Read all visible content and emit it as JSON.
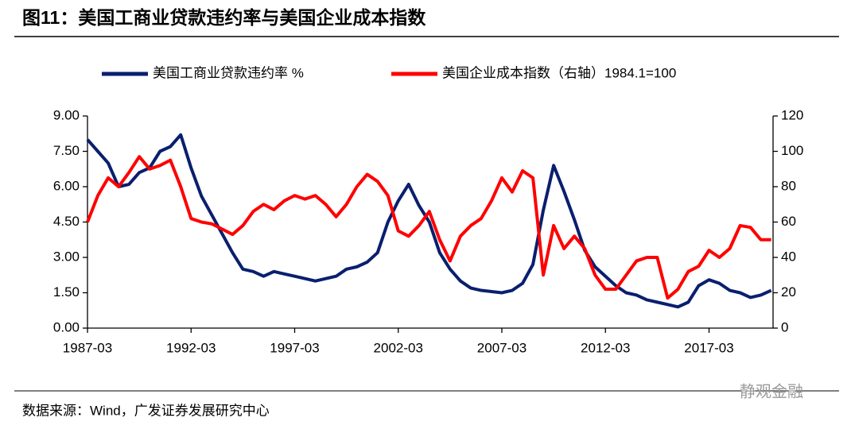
{
  "chart_data": {
    "type": "line",
    "title": "图11：美国工商业贷款违约率与美国企业成本指数",
    "source": "数据来源：Wind，广发证券发展研究中心",
    "watermark": "静观金融",
    "x": [
      "1987-03",
      "1987-09",
      "1988-03",
      "1988-09",
      "1989-03",
      "1989-09",
      "1990-03",
      "1990-09",
      "1991-03",
      "1991-09",
      "1992-03",
      "1992-09",
      "1993-03",
      "1993-09",
      "1994-03",
      "1994-09",
      "1995-03",
      "1995-09",
      "1996-03",
      "1996-09",
      "1997-03",
      "1997-09",
      "1998-03",
      "1998-09",
      "1999-03",
      "1999-09",
      "2000-03",
      "2000-09",
      "2001-03",
      "2001-09",
      "2002-03",
      "2002-09",
      "2003-03",
      "2003-09",
      "2004-03",
      "2004-09",
      "2005-03",
      "2005-09",
      "2006-03",
      "2006-09",
      "2007-03",
      "2007-09",
      "2008-03",
      "2008-09",
      "2009-03",
      "2009-09",
      "2010-03",
      "2010-09",
      "2011-03",
      "2011-09",
      "2012-03",
      "2012-09",
      "2013-03",
      "2013-09",
      "2014-03",
      "2014-09",
      "2015-03",
      "2015-09",
      "2016-03",
      "2016-09",
      "2017-03",
      "2017-09",
      "2018-03",
      "2018-09",
      "2019-03",
      "2019-09",
      "2020-03"
    ],
    "xticks": [
      "1987-03",
      "1992-03",
      "1997-03",
      "2002-03",
      "2007-03",
      "2012-03",
      "2017-03"
    ],
    "ylim": [
      0,
      9
    ],
    "yticks": [
      {
        "value": 0,
        "label": "0.00"
      },
      {
        "value": 1.5,
        "label": "1.50"
      },
      {
        "value": 3,
        "label": "3.00"
      },
      {
        "value": 4.5,
        "label": "4.50"
      },
      {
        "value": 6,
        "label": "6.00"
      },
      {
        "value": 7.5,
        "label": "7.50"
      },
      {
        "value": 9,
        "label": "9.00"
      }
    ],
    "y2lim": [
      0,
      120
    ],
    "y2ticks": [
      0,
      20,
      40,
      60,
      80,
      100,
      120
    ],
    "grid": false,
    "legend": "top",
    "series": [
      {
        "name": "美国工商业贷款违约率 %",
        "color": "#0a1f6e",
        "values": [
          8.0,
          7.5,
          7.0,
          6.0,
          6.1,
          6.6,
          6.8,
          7.5,
          7.7,
          8.2,
          6.8,
          5.6,
          4.8,
          4.0,
          3.2,
          2.5,
          2.4,
          2.2,
          2.4,
          2.3,
          2.2,
          2.1,
          2.0,
          2.1,
          2.2,
          2.5,
          2.6,
          2.8,
          3.2,
          4.5,
          5.4,
          6.1,
          5.2,
          4.5,
          3.2,
          2.5,
          2.0,
          1.7,
          1.6,
          1.55,
          1.5,
          1.6,
          1.9,
          2.7,
          5.0,
          6.9,
          5.8,
          4.6,
          3.3,
          2.6,
          2.2,
          1.8,
          1.5,
          1.4,
          1.2,
          1.1,
          1.0,
          0.9,
          1.1,
          1.8,
          2.05,
          1.9,
          1.6,
          1.5,
          1.3,
          1.4,
          1.6
        ]
      },
      {
        "name": "美国企业成本指数（右轴）1984.1=100",
        "color": "#ff0000",
        "axis": "y2",
        "values": [
          60,
          75,
          85,
          80,
          88,
          97,
          90,
          92,
          95,
          80,
          62,
          60,
          59,
          56,
          53,
          58,
          66,
          70,
          67,
          72,
          75,
          73,
          75,
          70,
          63,
          70,
          80,
          87,
          83,
          75,
          55,
          52,
          58,
          66,
          50,
          38,
          52,
          58,
          62,
          72,
          85,
          77,
          89,
          85,
          30,
          58,
          45,
          52,
          45,
          30,
          22,
          22,
          30,
          38,
          40,
          40,
          17,
          22,
          32,
          35,
          44,
          40,
          45,
          58,
          57,
          50,
          50
        ]
      }
    ]
  }
}
